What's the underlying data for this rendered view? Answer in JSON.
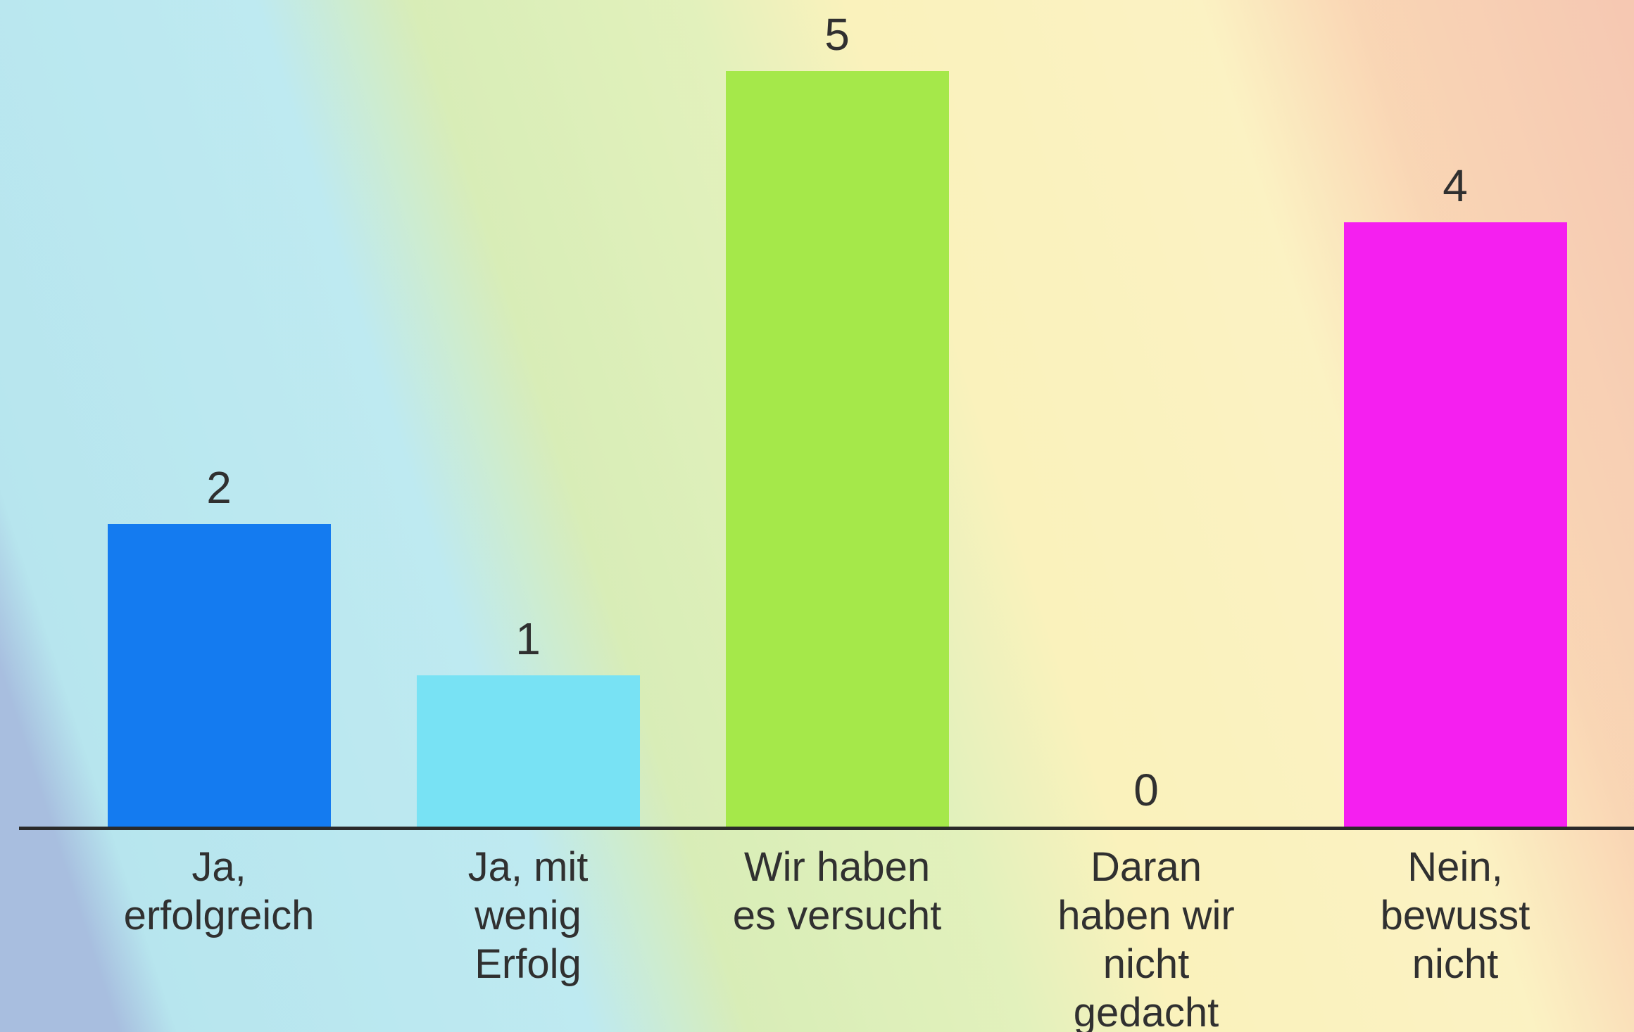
{
  "chart_data": {
    "type": "bar",
    "categories": [
      "Ja,\nerfolgreich",
      "Ja, mit\nwenig\nErfolg",
      "Wir haben\nes versucht",
      "Daran\nhaben wir\nnicht\ngedacht",
      "Nein,\nbewusst\nnicht"
    ],
    "values": [
      2,
      1,
      5,
      0,
      4
    ],
    "colors": [
      "#147bf0",
      "#78e2f4",
      "#a5e84a",
      "#f5e86a",
      "#f51ff0"
    ]
  }
}
